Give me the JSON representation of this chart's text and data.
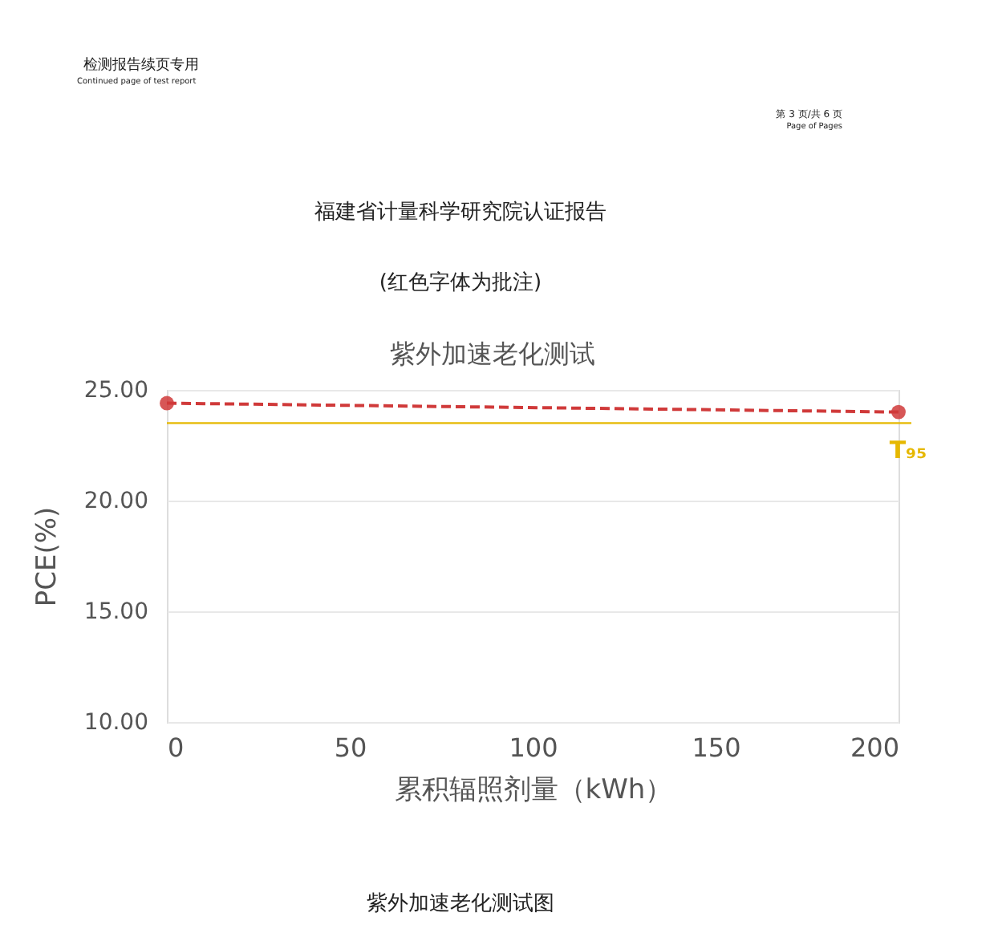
{
  "chart_data": {
    "type": "line",
    "title": "紫外加速老化测试",
    "xlabel": "累积辐照剂量（kWh）",
    "ylabel": "PCE(%)",
    "x": [
      0,
      200
    ],
    "series": [
      {
        "color": "#d03a3a",
        "values": [
          24.4,
          24.0
        ]
      }
    ],
    "xlim": [
      0,
      200
    ],
    "xticks": [
      0,
      50,
      100,
      150,
      200
    ],
    "ylim": [
      10,
      25
    ],
    "yticks": [
      {
        "value": 10,
        "label": "10.00"
      },
      {
        "value": 15,
        "label": "15.00"
      },
      {
        "value": 20,
        "label": "20.00"
      },
      {
        "value": 25,
        "label": "25.00"
      }
    ],
    "ref_lines": [
      {
        "axis": "y",
        "value": 23.5,
        "label": "T₉₅",
        "color": "#e6b800"
      }
    ],
    "grid": "y",
    "marker": "circle",
    "line_style": "dashed",
    "annotations": [
      "检测报告续页专用",
      "Continued page of test report",
      "第 3 页/共 6 页",
      "Page of Pages",
      "福建省计量科学研究院认证报告",
      "(红色字体为批注)",
      "紫外加速老化测试图"
    ]
  }
}
